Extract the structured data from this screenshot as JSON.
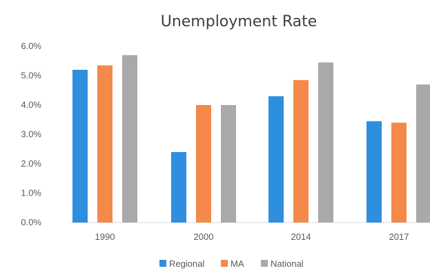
{
  "chart_data": {
    "type": "bar",
    "title": "Unemployment Rate",
    "categories": [
      "1990",
      "2000",
      "2014",
      "2017"
    ],
    "series": [
      {
        "name": "Regional",
        "color": "#2e8fde",
        "values": [
          5.2,
          2.4,
          4.3,
          3.45
        ]
      },
      {
        "name": "MA",
        "color": "#f4894a",
        "values": [
          5.35,
          4.0,
          4.85,
          3.4
        ]
      },
      {
        "name": "National",
        "color": "#a9a9a9",
        "values": [
          5.7,
          4.0,
          5.45,
          4.7
        ]
      }
    ],
    "ylim": [
      0,
      6
    ],
    "y_ticks": [
      "0.0%",
      "1.0%",
      "2.0%",
      "3.0%",
      "4.0%",
      "5.0%",
      "6.0%"
    ],
    "grid": false,
    "legend_position": "bottom"
  }
}
